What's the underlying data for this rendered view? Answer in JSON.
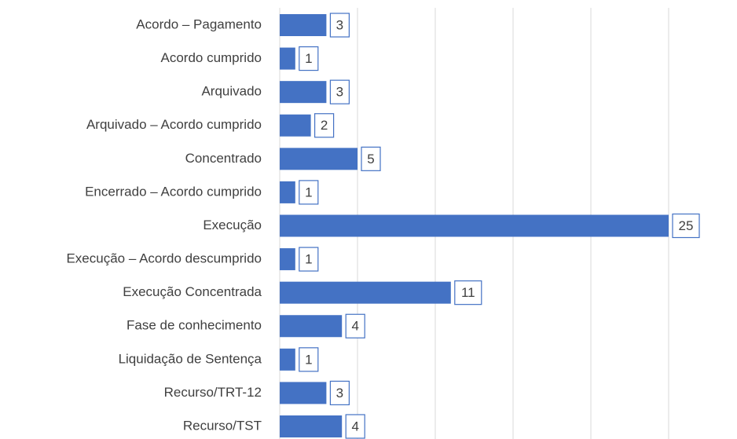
{
  "chart_data": {
    "type": "bar",
    "orientation": "horizontal",
    "categories": [
      "Acordo – Pagamento",
      "Acordo cumprido",
      "Arquivado",
      "Arquivado – Acordo cumprido",
      "Concentrado",
      "Encerrado – Acordo cumprido",
      "Execução",
      "Execução – Acordo descumprido",
      "Execução Concentrada",
      "Fase de conhecimento",
      "Liquidação de Sentença",
      "Recurso/TRT-12",
      "Recurso/TST"
    ],
    "values": [
      3,
      1,
      3,
      2,
      5,
      1,
      25,
      1,
      11,
      4,
      1,
      3,
      4
    ],
    "color": "#4472c4",
    "xlim": [
      0,
      25
    ],
    "xticks": [
      0,
      5,
      10,
      15,
      20,
      25
    ],
    "grid": true
  }
}
